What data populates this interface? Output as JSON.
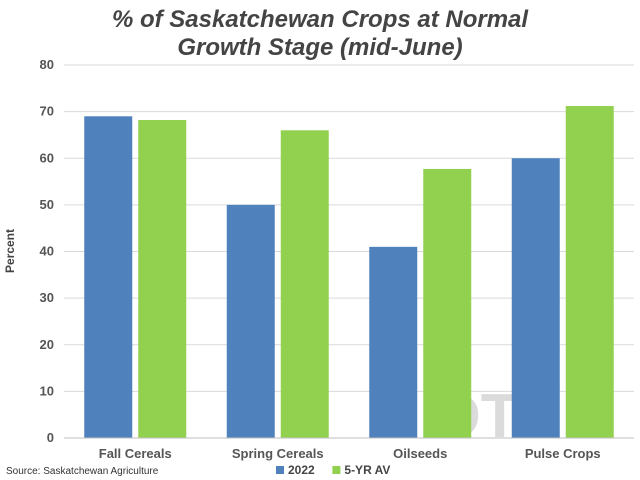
{
  "chart_data": {
    "type": "bar",
    "title": [
      "% of Saskatchewan Crops at Normal",
      "Growth Stage (mid-June)"
    ],
    "ylabel": "Percent",
    "xlabel": "",
    "ylim": [
      0,
      80
    ],
    "yticks": [
      0,
      10,
      20,
      30,
      40,
      50,
      60,
      70,
      80
    ],
    "grid": true,
    "legend_position": "bottom",
    "categories": [
      "Fall Cereals",
      "Spring Cereals",
      "Oilseeds",
      "Pulse Crops"
    ],
    "series": [
      {
        "name": "2022",
        "color": "#4f81bd",
        "values": [
          69,
          50,
          41,
          60
        ]
      },
      {
        "name": "5-YR AV",
        "color": "#92d050",
        "values": [
          68.2,
          66,
          57.7,
          71.2
        ]
      }
    ]
  },
  "source": "Source: Saskatchewan Agriculture",
  "watermark": {
    "text": "DTN",
    "icon": "dtn-logo-ring",
    "color": "#8fdccc"
  }
}
